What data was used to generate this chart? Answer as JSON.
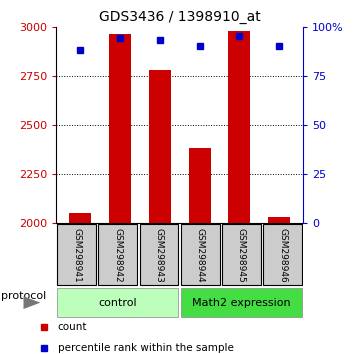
{
  "title": "GDS3436 / 1398910_at",
  "samples": [
    "GSM298941",
    "GSM298942",
    "GSM298943",
    "GSM298944",
    "GSM298945",
    "GSM298946"
  ],
  "counts": [
    2050,
    2960,
    2780,
    2380,
    2975,
    2030
  ],
  "percentile_ranks": [
    88,
    94,
    93,
    90,
    95,
    90
  ],
  "ylim_left": [
    2000,
    3000
  ],
  "ylim_right": [
    0,
    100
  ],
  "yticks_left": [
    2000,
    2250,
    2500,
    2750,
    3000
  ],
  "yticks_right": [
    0,
    25,
    50,
    75,
    100
  ],
  "bar_color": "#cc0000",
  "dot_color": "#0000cc",
  "bar_width": 0.55,
  "groups": [
    {
      "label": "control",
      "samples": [
        0,
        1,
        2
      ],
      "color": "#bbffbb"
    },
    {
      "label": "Math2 expression",
      "samples": [
        3,
        4,
        5
      ],
      "color": "#44dd44"
    }
  ],
  "legend_count_color": "#cc0000",
  "legend_dot_color": "#0000cc",
  "bg_color": "#ffffff",
  "plot_bg": "#ffffff",
  "left_tick_color": "#cc0000",
  "right_tick_color": "#0000cc",
  "protocol_label": "protocol",
  "xlabel_bg": "#cccccc",
  "title_fontsize": 10,
  "tick_fontsize": 8,
  "label_fontsize": 6.5,
  "legend_fontsize": 7.5,
  "group_fontsize": 8
}
